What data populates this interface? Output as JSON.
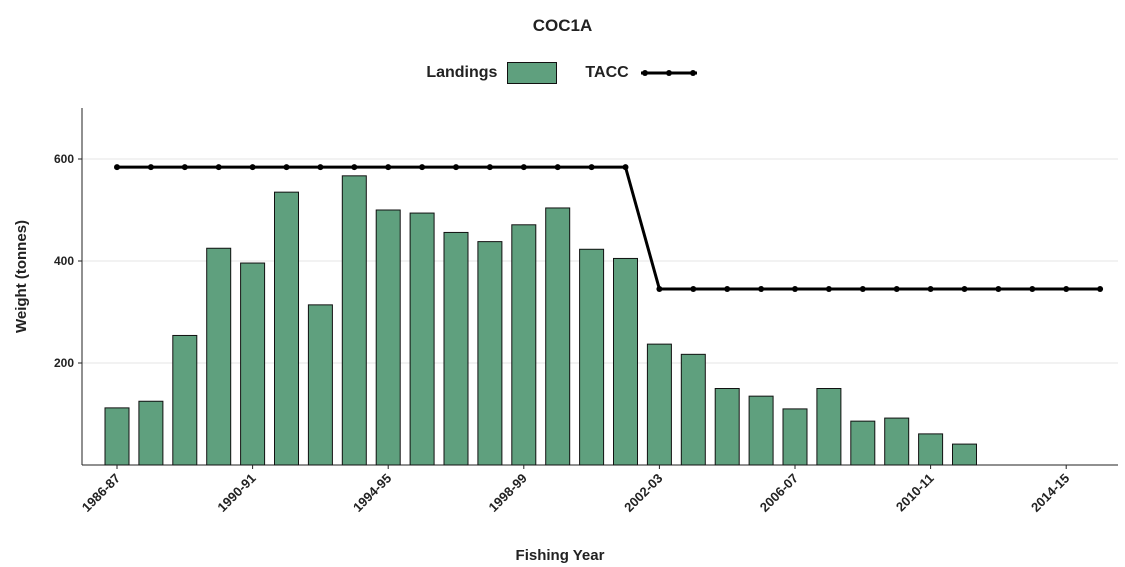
{
  "chart_data": {
    "type": "bar",
    "title": "COC1A",
    "xlabel": "Fishing Year",
    "ylabel": "Weight (tonnes)",
    "ylim": [
      0,
      700
    ],
    "yticks": [
      200,
      400,
      600
    ],
    "grid": "horizontal",
    "legend_position": "top",
    "categories": [
      "1986-87",
      "1987-88",
      "1988-89",
      "1989-90",
      "1990-91",
      "1991-92",
      "1992-93",
      "1993-94",
      "1994-95",
      "1995-96",
      "1996-97",
      "1997-98",
      "1998-99",
      "1999-00",
      "2000-01",
      "2001-02",
      "2002-03",
      "2003-04",
      "2004-05",
      "2005-06",
      "2006-07",
      "2007-08",
      "2008-09",
      "2009-10",
      "2010-11",
      "2011-12",
      "2012-13",
      "2013-14",
      "2014-15",
      "2015-16"
    ],
    "x_tick_labels": [
      "1986-87",
      "1990-91",
      "1994-95",
      "1998-99",
      "2002-03",
      "2006-07",
      "2010-11",
      "2014-15"
    ],
    "series": [
      {
        "name": "Landings",
        "type": "bar",
        "color": "#5fa07e",
        "values": [
          112,
          125,
          254,
          425,
          396,
          535,
          314,
          567,
          500,
          494,
          456,
          438,
          471,
          504,
          423,
          405,
          237,
          217,
          150,
          135,
          110,
          150,
          86,
          92,
          61,
          41,
          null,
          null,
          null,
          null
        ]
      },
      {
        "name": "TACC",
        "type": "line",
        "color": "#000000",
        "values": [
          584,
          584,
          584,
          584,
          584,
          584,
          584,
          584,
          584,
          584,
          584,
          584,
          584,
          584,
          584,
          584,
          345,
          345,
          345,
          345,
          345,
          345,
          345,
          345,
          345,
          345,
          345,
          345,
          345,
          345
        ]
      }
    ]
  }
}
